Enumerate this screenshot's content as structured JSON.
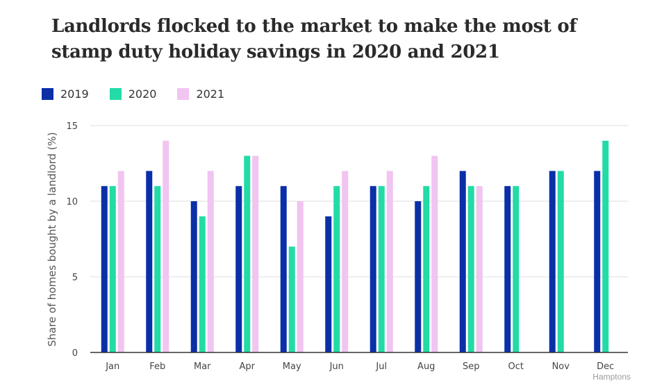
{
  "title": "Landlords flocked to the market to make the most of stamp duty holiday savings in 2020 and 2021",
  "source": "Hamptons",
  "colors": {
    "2019": "#0a2fa8",
    "2020": "#22dba6",
    "2021": "#f1c4f1",
    "grid": "#dddddd",
    "axis": "#333333"
  },
  "chart_data": {
    "type": "bar",
    "title": "Landlords flocked to the market to make the most of stamp duty holiday savings in 2020 and 2021",
    "xlabel": "",
    "ylabel": "Share of homes bought by a landlord (%)",
    "ylim": [
      0,
      15
    ],
    "yticks": [
      0,
      5,
      10,
      15
    ],
    "grid": true,
    "legend_position": "top-left",
    "categories": [
      "Jan",
      "Feb",
      "Mar",
      "Apr",
      "May",
      "Jun",
      "Jul",
      "Aug",
      "Sep",
      "Oct",
      "Nov",
      "Dec"
    ],
    "series": [
      {
        "name": "2019",
        "values": [
          11,
          12,
          10,
          11,
          11,
          9,
          11,
          10,
          12,
          11,
          12,
          12
        ]
      },
      {
        "name": "2020",
        "values": [
          11,
          11,
          9,
          13,
          7,
          11,
          11,
          11,
          11,
          11,
          12,
          14
        ]
      },
      {
        "name": "2021",
        "values": [
          12,
          14,
          12,
          13,
          10,
          12,
          12,
          13,
          11,
          null,
          null,
          null
        ]
      }
    ]
  }
}
